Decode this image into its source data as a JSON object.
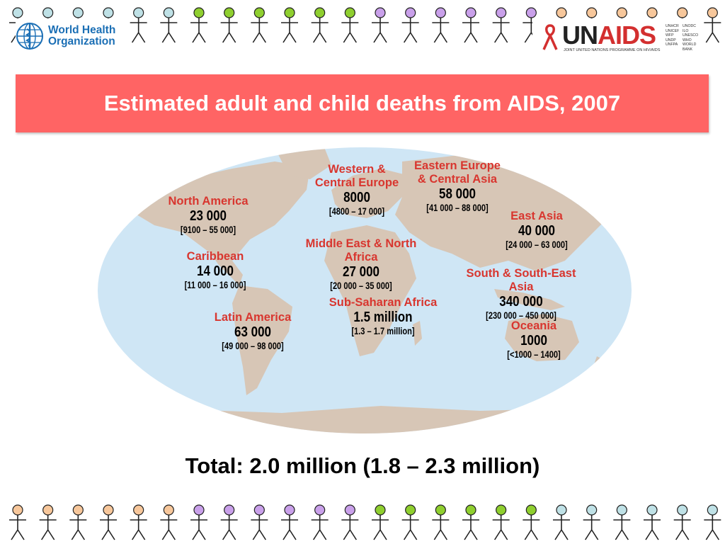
{
  "title": "Estimated adult and child deaths from AIDS, 2007",
  "total": "Total: 2.0 million (1.8 – 2.3 million)",
  "logos": {
    "who": {
      "line1": "World Health",
      "line2": "Organization"
    },
    "unaids": {
      "brand_un": "UN",
      "brand_aids": "AIDS",
      "tagline": "JOINT UNITED NATIONS PROGRAMME ON HIV/AIDS",
      "cosponsors": [
        "UNHCR",
        "UNODC",
        "UNICEF",
        "ILO",
        "WFP",
        "UNESCO",
        "UNDP",
        "WHO",
        "UNFPA",
        "WORLD BANK"
      ]
    }
  },
  "regions": [
    {
      "key": "north-america",
      "name": [
        "North America"
      ],
      "value": "23 000",
      "range": "[9100 – 55 000]"
    },
    {
      "key": "caribbean",
      "name": [
        "Caribbean"
      ],
      "value": "14 000",
      "range": "[11 000 – 16 000]"
    },
    {
      "key": "latin-america",
      "name": [
        "Latin America"
      ],
      "value": "63 000",
      "range": "[49 000 – 98 000]"
    },
    {
      "key": "western-central-europe",
      "name": [
        "Western &",
        "Central Europe"
      ],
      "value": "8000",
      "range": "[4800 – 17 000]"
    },
    {
      "key": "eastern-europe-central-asia",
      "name": [
        "Eastern Europe",
        "& Central Asia"
      ],
      "value": "58 000",
      "range": "[41 000 – 88 000]"
    },
    {
      "key": "east-asia",
      "name": [
        "East Asia"
      ],
      "value": "40 000",
      "range": "[24 000 – 63 000]"
    },
    {
      "key": "middle-east-north-africa",
      "name": [
        "Middle East & North",
        "Africa"
      ],
      "value": "27 000",
      "range": "[20 000 – 35 000]"
    },
    {
      "key": "sub-saharan-africa",
      "name": [
        "Sub-Saharan Africa"
      ],
      "value": "1.5 million",
      "range": "[1.3 – 1.7 million]"
    },
    {
      "key": "south-south-east-asia",
      "name": [
        "South & South-East",
        "Asia"
      ],
      "value": "340 000",
      "range": "[230 000 – 450 000]"
    },
    {
      "key": "oceania",
      "name": [
        "Oceania"
      ],
      "value": "1000",
      "range": "[<1000 – 1400]"
    }
  ],
  "colors": {
    "banner": "#ff6464",
    "region_name": "#d8362f",
    "ocean": "#cfe6f5",
    "land": "#d7c6b6",
    "figure_heads_top": [
      "#bfe1e6",
      "#8fcf2f",
      "#c9a0ea",
      "#f7c79b"
    ],
    "figure_heads_bottom": [
      "#f7c79b",
      "#c9a0ea",
      "#8fcf2f",
      "#bfe1e6"
    ]
  }
}
